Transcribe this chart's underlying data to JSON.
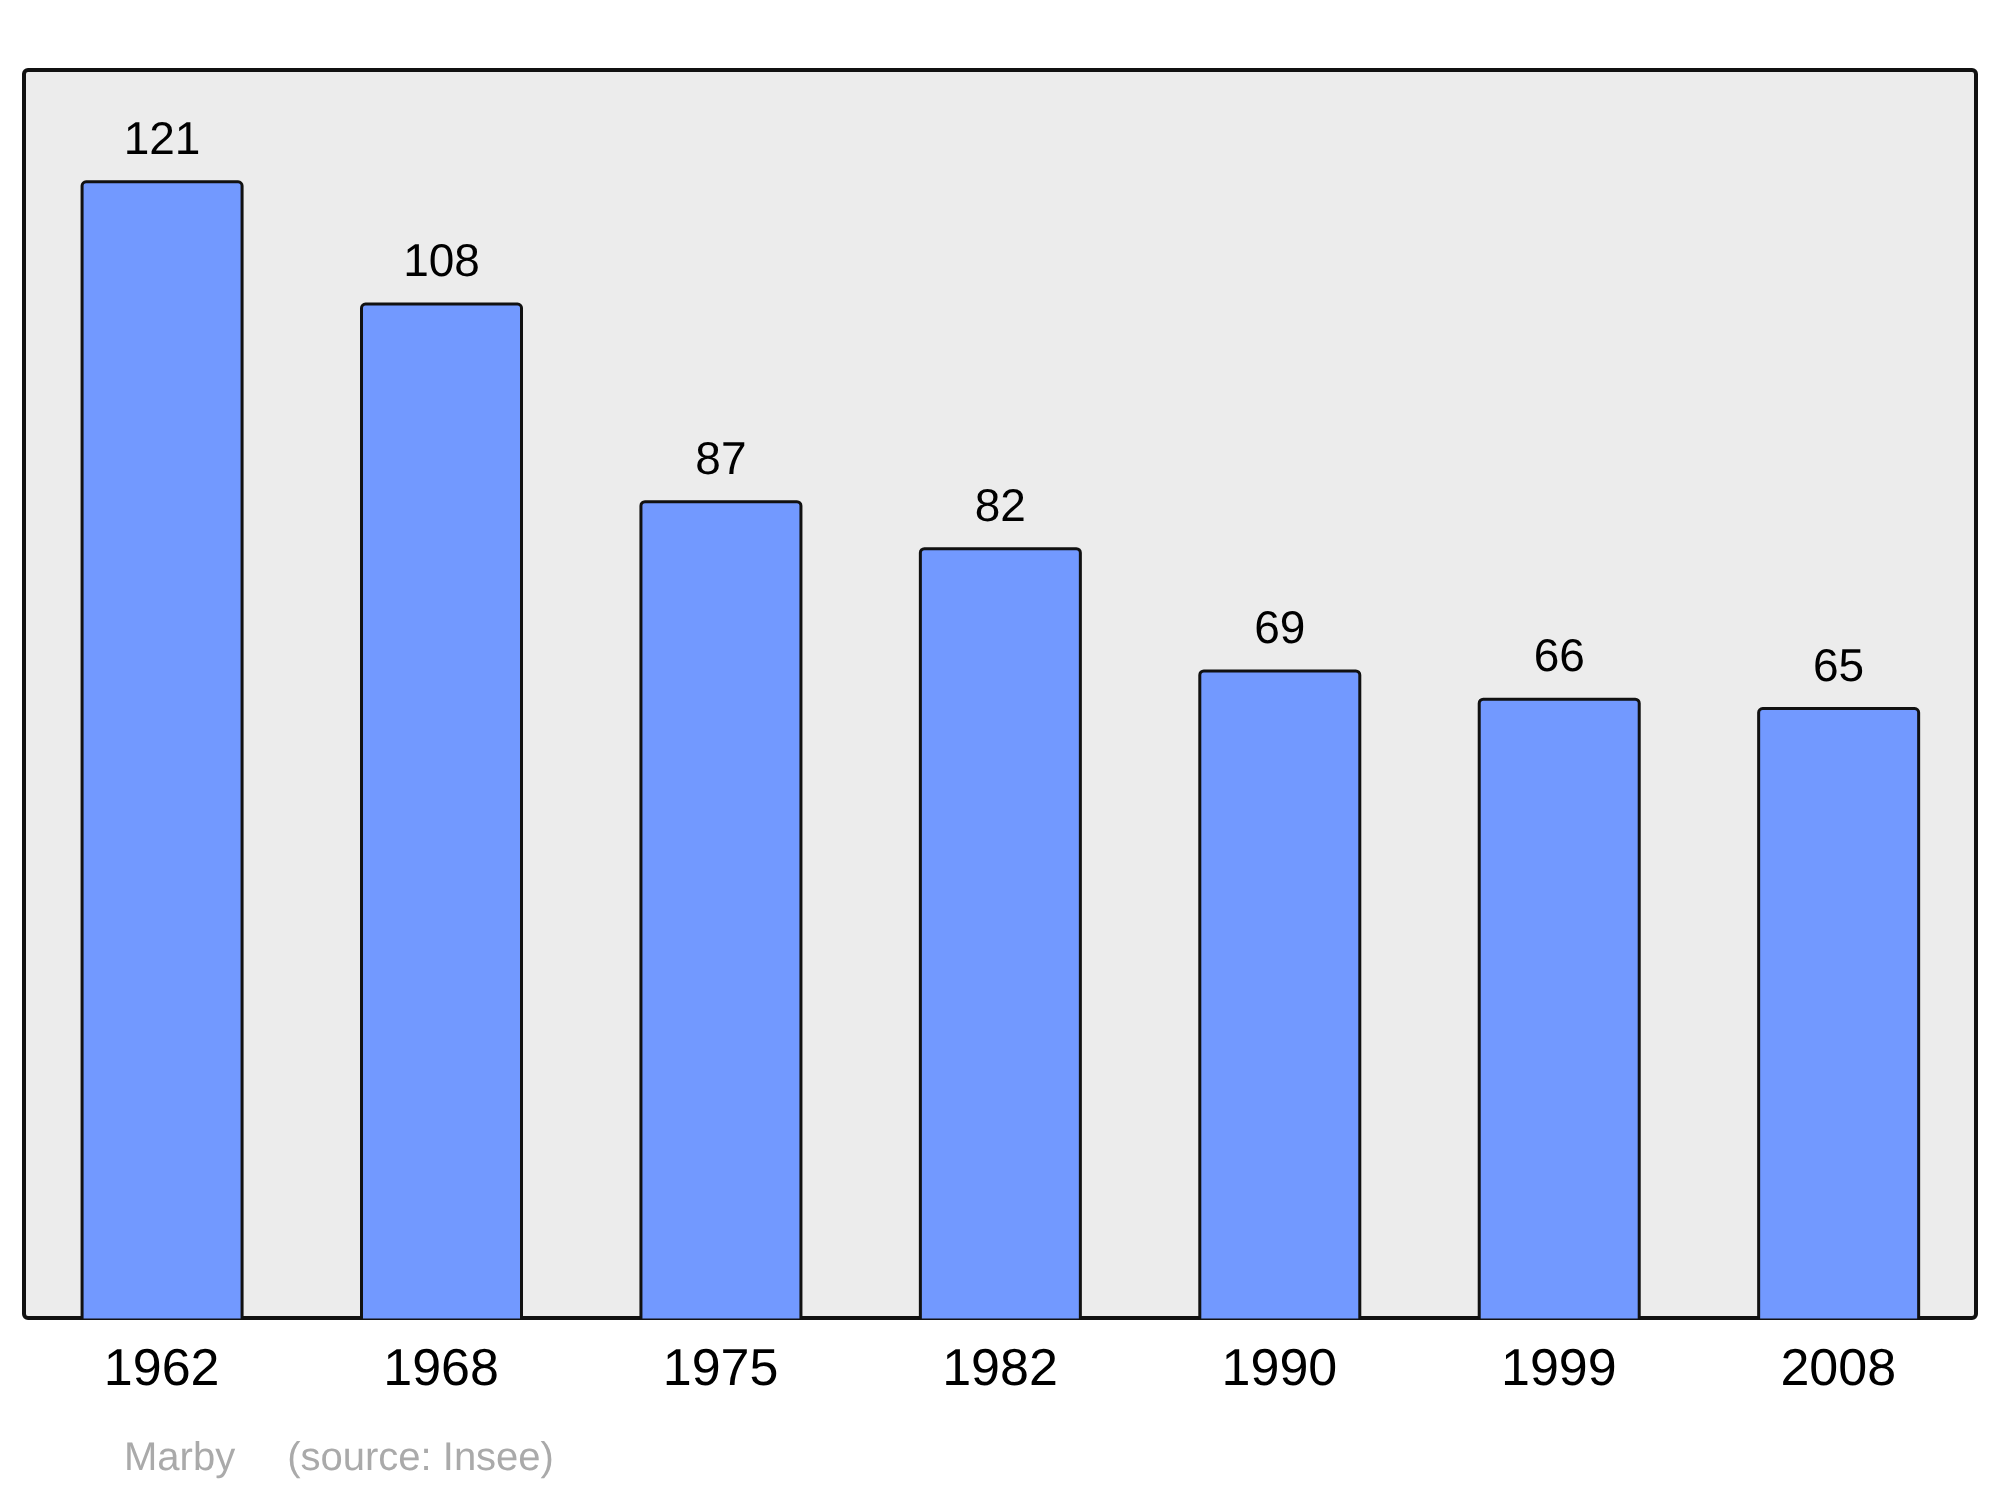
{
  "chart_data": {
    "type": "bar",
    "categories": [
      "1962",
      "1968",
      "1975",
      "1982",
      "1990",
      "1999",
      "2008"
    ],
    "values": [
      121,
      108,
      87,
      82,
      69,
      66,
      65
    ],
    "color": "#7299ff",
    "data_labels": true,
    "annotations": [
      "Marby",
      "(source: Insee)"
    ]
  }
}
